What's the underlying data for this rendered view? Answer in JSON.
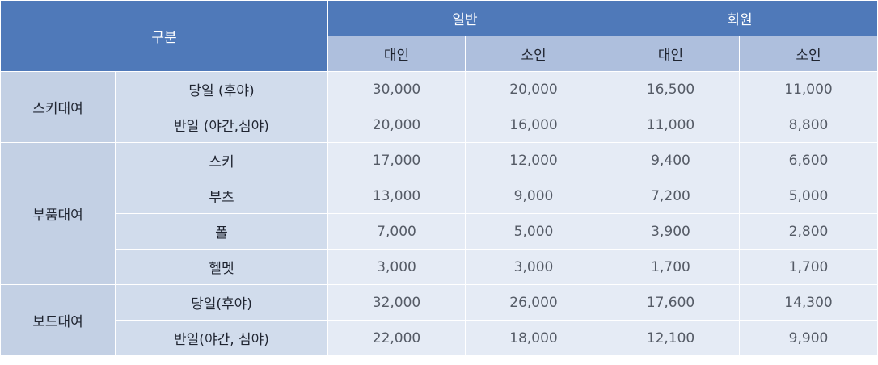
{
  "table": {
    "header": {
      "category": "구분",
      "group_general": "일반",
      "group_member": "회원",
      "adult": "대인",
      "child": "소인"
    },
    "groups": [
      {
        "name": "스키대여",
        "rows": [
          {
            "item": "당일 (후야)",
            "general_adult": "30,000",
            "general_child": "20,000",
            "member_adult": "16,500",
            "member_child": "11,000"
          },
          {
            "item": "반일 (야간,심야)",
            "general_adult": "20,000",
            "general_child": "16,000",
            "member_adult": "11,000",
            "member_child": "8,800"
          }
        ]
      },
      {
        "name": "부품대여",
        "rows": [
          {
            "item": "스키",
            "general_adult": "17,000",
            "general_child": "12,000",
            "member_adult": "9,400",
            "member_child": "6,600"
          },
          {
            "item": "부츠",
            "general_adult": "13,000",
            "general_child": "9,000",
            "member_adult": "7,200",
            "member_child": "5,000"
          },
          {
            "item": "폴",
            "general_adult": "7,000",
            "general_child": "5,000",
            "member_adult": "3,900",
            "member_child": "2,800"
          },
          {
            "item": "헬멧",
            "general_adult": "3,000",
            "general_child": "3,000",
            "member_adult": "1,700",
            "member_child": "1,700"
          }
        ]
      },
      {
        "name": "보드대여",
        "rows": [
          {
            "item": "당일(후야)",
            "general_adult": "32,000",
            "general_child": "26,000",
            "member_adult": "17,600",
            "member_child": "14,300"
          },
          {
            "item": "반일(야간, 심야)",
            "general_adult": "22,000",
            "general_child": "18,000",
            "member_adult": "12,100",
            "member_child": "9,900"
          }
        ]
      }
    ]
  }
}
